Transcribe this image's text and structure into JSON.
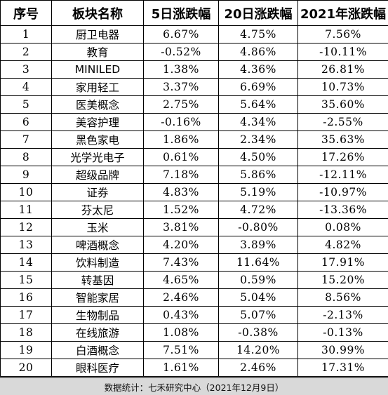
{
  "table": {
    "headers": [
      "序号",
      "板块名称",
      "5日涨跌幅",
      "20日涨跌幅",
      "2021年涨跌幅"
    ],
    "rows": [
      [
        "1",
        "厨卫电器",
        "6.67%",
        "4.75%",
        "7.56%"
      ],
      [
        "2",
        "教育",
        "-0.52%",
        "4.86%",
        "-10.11%"
      ],
      [
        "3",
        "MINILED",
        "1.38%",
        "4.36%",
        "26.81%"
      ],
      [
        "4",
        "家用轻工",
        "3.37%",
        "6.69%",
        "10.73%"
      ],
      [
        "5",
        "医美概念",
        "2.75%",
        "5.64%",
        "35.60%"
      ],
      [
        "6",
        "美容护理",
        "-0.16%",
        "4.34%",
        "-2.55%"
      ],
      [
        "7",
        "黑色家电",
        "1.86%",
        "2.34%",
        "35.63%"
      ],
      [
        "8",
        "光学光电子",
        "0.61%",
        "4.50%",
        "17.26%"
      ],
      [
        "9",
        "超级品牌",
        "7.18%",
        "5.86%",
        "-12.11%"
      ],
      [
        "10",
        "证券",
        "4.83%",
        "5.19%",
        "-10.97%"
      ],
      [
        "11",
        "芬太尼",
        "1.52%",
        "4.72%",
        "-13.36%"
      ],
      [
        "12",
        "玉米",
        "3.81%",
        "-0.80%",
        "0.08%"
      ],
      [
        "13",
        "啤酒概念",
        "4.20%",
        "3.89%",
        "4.82%"
      ],
      [
        "14",
        "饮料制造",
        "7.43%",
        "11.64%",
        "17.91%"
      ],
      [
        "15",
        "转基因",
        "4.65%",
        "0.59%",
        "15.20%"
      ],
      [
        "16",
        "智能家居",
        "2.46%",
        "5.04%",
        "8.56%"
      ],
      [
        "17",
        "生物制品",
        "0.43%",
        "5.07%",
        "-2.13%"
      ],
      [
        "18",
        "在线旅游",
        "1.08%",
        "-0.38%",
        "-0.13%"
      ],
      [
        "19",
        "白酒概念",
        "7.51%",
        "14.20%",
        "30.99%"
      ],
      [
        "20",
        "眼科医疗",
        "1.61%",
        "2.46%",
        "17.31%"
      ]
    ]
  },
  "footer": {
    "text": "数据统计：七禾研究中心（2021年12月9日）"
  },
  "colors": {
    "footer_background": "#d9d9d9",
    "border": "#000000",
    "text": "#000000"
  }
}
